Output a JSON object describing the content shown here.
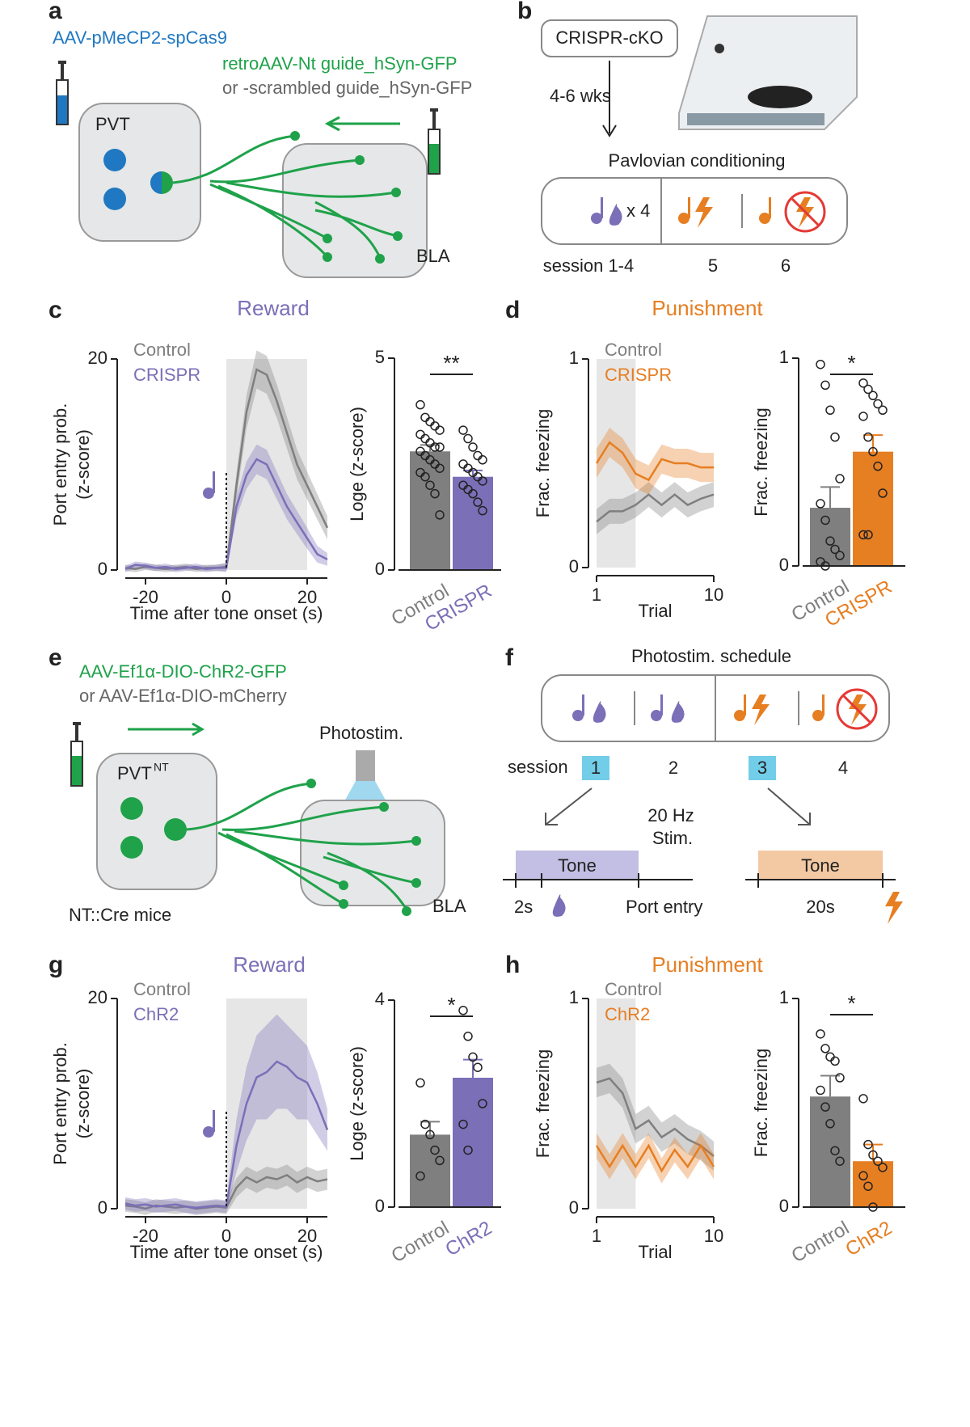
{
  "panels": {
    "letters": [
      "a",
      "b",
      "c",
      "d",
      "e",
      "f",
      "g",
      "h"
    ]
  },
  "diagrams": {
    "a": {
      "vector1": "AAV-pMeCP2-spCas9",
      "vector2": "retroAAV-Nt guide_hSyn-GFP",
      "vector3": "or -scrambled guide_hSyn-GFP",
      "region1": "PVT",
      "region2": "BLA"
    },
    "b": {
      "box": "CRISPR-cKO",
      "wait": "4-6 wks",
      "protocol": "Pavlovian conditioning",
      "repeat": "x 4",
      "sessions": [
        "session 1-4",
        "5",
        "6"
      ]
    },
    "e": {
      "vector1": "AAV-Ef1α-DIO-ChR2-GFP",
      "vector2": "or AAV-Ef1α-DIO-mCherry",
      "stim": "Photostim.",
      "region1": "PVT",
      "region1_sup": "NT",
      "region2": "BLA",
      "mice": "NT::Cre mice"
    },
    "f": {
      "title": "Photostim. schedule",
      "session": "session",
      "sessions": [
        "1",
        "2",
        "3",
        "4"
      ],
      "stim1": "20 Hz",
      "stim2": "Stim.",
      "tone1": "Tone",
      "tone2": "Tone",
      "delay": "2s",
      "port": "Port entry",
      "duration": "20s"
    }
  },
  "chart_data": [
    {
      "type": "line",
      "title": "Reward",
      "xlabel": "Time after tone onset (s)",
      "ylabel": [
        "Port entry prob.",
        "(z-score)"
      ],
      "x": [
        -25,
        -22.5,
        -20,
        -17.5,
        -15,
        -12.5,
        -10,
        -7.5,
        -5,
        -2.5,
        0,
        2.5,
        5,
        7.5,
        10,
        12.5,
        15,
        17.5,
        20,
        22.5,
        25
      ],
      "xlim": [
        -25,
        25
      ],
      "xticks": [
        -20,
        0,
        20
      ],
      "ylim": [
        0,
        20
      ],
      "yticks": [
        0,
        20
      ],
      "shade": [
        0,
        20
      ],
      "series": [
        {
          "name": "Control",
          "color": "#7f7f7f",
          "values": [
            0.2,
            0.1,
            0.3,
            0.2,
            0.1,
            0.2,
            0.3,
            0.1,
            0.2,
            0.2,
            0.3,
            8,
            15,
            19,
            18.5,
            16,
            13,
            10,
            8,
            6,
            4
          ],
          "sem": [
            0.3,
            0.3,
            0.3,
            0.3,
            0.3,
            0.3,
            0.3,
            0.3,
            0.3,
            0.3,
            0.4,
            1.2,
            1.6,
            1.8,
            1.8,
            1.6,
            1.5,
            1.4,
            1.3,
            1.2,
            1.1
          ]
        },
        {
          "name": "CRISPR",
          "color": "#7b6fb8",
          "values": [
            0.1,
            0.5,
            0.4,
            0.2,
            0.3,
            0.1,
            0.2,
            0.3,
            0.1,
            0.2,
            0.2,
            6,
            9,
            10.5,
            10,
            8,
            6,
            4.5,
            3,
            1.5,
            1
          ],
          "sem": [
            0.3,
            0.3,
            0.3,
            0.3,
            0.3,
            0.3,
            0.3,
            0.3,
            0.3,
            0.3,
            0.4,
            1,
            1.3,
            1.4,
            1.4,
            1.3,
            1.2,
            1.1,
            1,
            0.8,
            0.6
          ]
        }
      ]
    },
    {
      "type": "bar",
      "ylabel": "Loge (z-score)",
      "categories": [
        "Control",
        "CRISPR"
      ],
      "colors": [
        "#7f7f7f",
        "#7b6fb8"
      ],
      "values": [
        2.8,
        2.2
      ],
      "sem": [
        0.15,
        0.15
      ],
      "ylim": [
        0,
        5
      ],
      "yticks": [
        0,
        5
      ],
      "significance": "**",
      "points": [
        [
          3.9,
          3.6,
          3.5,
          3.4,
          3.3,
          3.2,
          3.1,
          3.0,
          2.9,
          2.9,
          2.8,
          2.7,
          2.6,
          2.5,
          2.4,
          2.3,
          2.2,
          2.0,
          1.8,
          1.3
        ],
        [
          3.3,
          3.1,
          2.9,
          2.7,
          2.6,
          2.5,
          2.4,
          2.3,
          2.2,
          2.1,
          2.0,
          1.9,
          1.8,
          1.6,
          1.4
        ]
      ]
    },
    {
      "type": "line",
      "title": "Punishment",
      "xlabel": "Trial",
      "ylabel": [
        "Frac. freezing"
      ],
      "x": [
        1,
        2,
        3,
        4,
        5,
        6,
        7,
        8,
        9,
        10
      ],
      "xlim": [
        1,
        10
      ],
      "xticks": [
        1,
        10
      ],
      "ylim": [
        0,
        1
      ],
      "yticks": [
        0,
        1
      ],
      "shade": [
        1,
        4
      ],
      "series": [
        {
          "name": "Control",
          "color": "#7f7f7f",
          "values": [
            0.22,
            0.27,
            0.27,
            0.3,
            0.35,
            0.3,
            0.35,
            0.3,
            0.33,
            0.35
          ],
          "sem": [
            0.06,
            0.06,
            0.06,
            0.06,
            0.06,
            0.06,
            0.06,
            0.06,
            0.06,
            0.06
          ]
        },
        {
          "name": "CRISPR",
          "color": "#e67e22",
          "values": [
            0.5,
            0.6,
            0.55,
            0.45,
            0.42,
            0.52,
            0.5,
            0.5,
            0.48,
            0.48
          ],
          "sem": [
            0.07,
            0.07,
            0.07,
            0.07,
            0.07,
            0.07,
            0.07,
            0.07,
            0.07,
            0.07
          ]
        }
      ]
    },
    {
      "type": "bar",
      "ylabel": "Frac. freezing",
      "categories": [
        "Control",
        "CRISPR"
      ],
      "colors": [
        "#7f7f7f",
        "#e67e22"
      ],
      "values": [
        0.28,
        0.55
      ],
      "sem": [
        0.1,
        0.08
      ],
      "ylim": [
        0,
        1
      ],
      "yticks": [
        0,
        1
      ],
      "significance": "*",
      "points": [
        [
          0.97,
          0.87,
          0.75,
          0.62,
          0.42,
          0.3,
          0.22,
          0.12,
          0.08,
          0.05,
          0.02,
          0
        ],
        [
          0.88,
          0.85,
          0.82,
          0.78,
          0.75,
          0.72,
          0.62,
          0.55,
          0.48,
          0.35,
          0.15,
          0.15
        ]
      ]
    },
    {
      "type": "line",
      "title": "Reward",
      "xlabel": "Time after tone onset (s)",
      "ylabel": [
        "Port entry prob.",
        "(z-score)"
      ],
      "x": [
        -25,
        -22.5,
        -20,
        -17.5,
        -15,
        -12.5,
        -10,
        -7.5,
        -5,
        -2.5,
        0,
        2.5,
        5,
        7.5,
        10,
        12.5,
        15,
        17.5,
        20,
        22.5,
        25
      ],
      "xlim": [
        -25,
        25
      ],
      "xticks": [
        -20,
        0,
        20
      ],
      "ylim": [
        0,
        20
      ],
      "yticks": [
        0,
        20
      ],
      "shade": [
        0,
        20
      ],
      "series": [
        {
          "name": "Control",
          "color": "#7f7f7f",
          "values": [
            0.3,
            0.2,
            0,
            0.3,
            0.2,
            0.1,
            0.2,
            0,
            0.1,
            0.2,
            0.1,
            2,
            3,
            2.5,
            3,
            2.8,
            3.2,
            2.5,
            3,
            2.6,
            2.8
          ],
          "sem": [
            0.6,
            0.6,
            0.6,
            0.6,
            0.6,
            0.6,
            0.6,
            0.6,
            0.6,
            0.6,
            0.6,
            0.9,
            1,
            1,
            1,
            1,
            1,
            1,
            1,
            1,
            1
          ]
        },
        {
          "name": "ChR2",
          "color": "#7b6fb8",
          "values": [
            0.5,
            0.3,
            0.4,
            0.2,
            0.3,
            0.4,
            0.2,
            0.1,
            0.2,
            0.3,
            0.2,
            6,
            10,
            12.5,
            13,
            14,
            13.5,
            12.5,
            12,
            10,
            7.5
          ],
          "sem": [
            0.6,
            0.6,
            0.6,
            0.6,
            0.6,
            0.6,
            0.6,
            0.6,
            0.6,
            0.6,
            0.6,
            2.5,
            3.5,
            4,
            4.5,
            4.5,
            4,
            4,
            3.5,
            3,
            2
          ]
        }
      ]
    },
    {
      "type": "bar",
      "ylabel": "Loge (z-score)",
      "categories": [
        "Control",
        "ChR2"
      ],
      "colors": [
        "#7f7f7f",
        "#7b6fb8"
      ],
      "values": [
        1.4,
        2.5
      ],
      "sem": [
        0.25,
        0.35
      ],
      "ylim": [
        0,
        4
      ],
      "yticks": [
        0,
        4
      ],
      "significance": "*",
      "points": [
        [
          2.4,
          1.6,
          1.4,
          1.1,
          0.9,
          0.6
        ],
        [
          3.8,
          3.3,
          2.9,
          2.7,
          2.0,
          1.6,
          1.1
        ]
      ]
    },
    {
      "type": "line",
      "title": "Punishment",
      "xlabel": "Trial",
      "ylabel": [
        "Frac. freezing"
      ],
      "x": [
        1,
        2,
        3,
        4,
        5,
        6,
        7,
        8,
        9,
        10
      ],
      "xlim": [
        1,
        10
      ],
      "xticks": [
        1,
        10
      ],
      "ylim": [
        0,
        1
      ],
      "yticks": [
        0,
        1
      ],
      "shade": [
        1,
        4
      ],
      "series": [
        {
          "name": "Control",
          "color": "#7f7f7f",
          "values": [
            0.6,
            0.62,
            0.55,
            0.38,
            0.42,
            0.34,
            0.38,
            0.33,
            0.3,
            0.25
          ],
          "sem": [
            0.07,
            0.07,
            0.07,
            0.07,
            0.07,
            0.07,
            0.07,
            0.07,
            0.07,
            0.07
          ]
        },
        {
          "name": "ChR2",
          "color": "#e67e22",
          "values": [
            0.3,
            0.2,
            0.3,
            0.2,
            0.3,
            0.18,
            0.28,
            0.2,
            0.3,
            0.2
          ],
          "sem": [
            0.06,
            0.06,
            0.06,
            0.06,
            0.06,
            0.06,
            0.06,
            0.06,
            0.06,
            0.06
          ]
        }
      ]
    },
    {
      "type": "bar",
      "ylabel": "Frac. freezing",
      "categories": [
        "Control",
        "ChR2"
      ],
      "colors": [
        "#7f7f7f",
        "#e67e22"
      ],
      "values": [
        0.53,
        0.22
      ],
      "sem": [
        0.1,
        0.08
      ],
      "ylim": [
        0,
        1
      ],
      "yticks": [
        0,
        1
      ],
      "significance": "*",
      "points": [
        [
          0.83,
          0.76,
          0.72,
          0.7,
          0.62,
          0.56,
          0.48,
          0.4,
          0.27,
          0.22
        ],
        [
          0.52,
          0.3,
          0.25,
          0.22,
          0.19,
          0.15,
          0.1,
          0
        ]
      ]
    }
  ]
}
